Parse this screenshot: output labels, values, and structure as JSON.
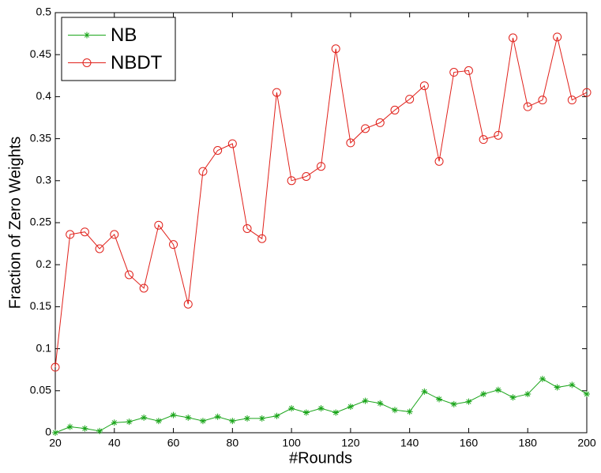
{
  "chart_data": {
    "type": "line",
    "x_label": "#Rounds",
    "y_label": "Fraction of Zero Weights",
    "x": [
      20,
      25,
      30,
      35,
      40,
      45,
      50,
      55,
      60,
      65,
      70,
      75,
      80,
      85,
      90,
      95,
      100,
      105,
      110,
      115,
      120,
      125,
      130,
      135,
      140,
      145,
      150,
      155,
      160,
      165,
      170,
      175,
      180,
      185,
      190,
      195,
      200
    ],
    "series": [
      {
        "name": "NB",
        "color": "#1aa51a",
        "marker": "*",
        "values": [
          0.0,
          0.007,
          0.005,
          0.002,
          0.012,
          0.013,
          0.018,
          0.014,
          0.021,
          0.018,
          0.014,
          0.019,
          0.014,
          0.017,
          0.017,
          0.02,
          0.029,
          0.024,
          0.029,
          0.024,
          0.031,
          0.038,
          0.035,
          0.027,
          0.025,
          0.049,
          0.04,
          0.034,
          0.037,
          0.046,
          0.051,
          0.042,
          0.046,
          0.064,
          0.054,
          0.057,
          0.046
        ]
      },
      {
        "name": "NBDT",
        "color": "#e0201a",
        "marker": "o",
        "values": [
          0.078,
          0.236,
          0.239,
          0.219,
          0.236,
          0.188,
          0.172,
          0.247,
          0.224,
          0.153,
          0.311,
          0.336,
          0.344,
          0.243,
          0.231,
          0.405,
          0.3,
          0.305,
          0.317,
          0.457,
          0.345,
          0.362,
          0.369,
          0.384,
          0.397,
          0.413,
          0.323,
          0.429,
          0.431,
          0.349,
          0.354,
          0.47,
          0.388,
          0.396,
          0.471,
          0.396,
          0.405
        ]
      }
    ],
    "xlim": [
      20,
      200
    ],
    "xticks": [
      20,
      40,
      60,
      80,
      100,
      120,
      140,
      160,
      180,
      200
    ],
    "ylim": [
      0,
      0.5
    ],
    "yticks": [
      0,
      0.05,
      0.1,
      0.15,
      0.2,
      0.25,
      0.3,
      0.35,
      0.4,
      0.45,
      0.5
    ],
    "grid": false,
    "legend": "upper left"
  }
}
